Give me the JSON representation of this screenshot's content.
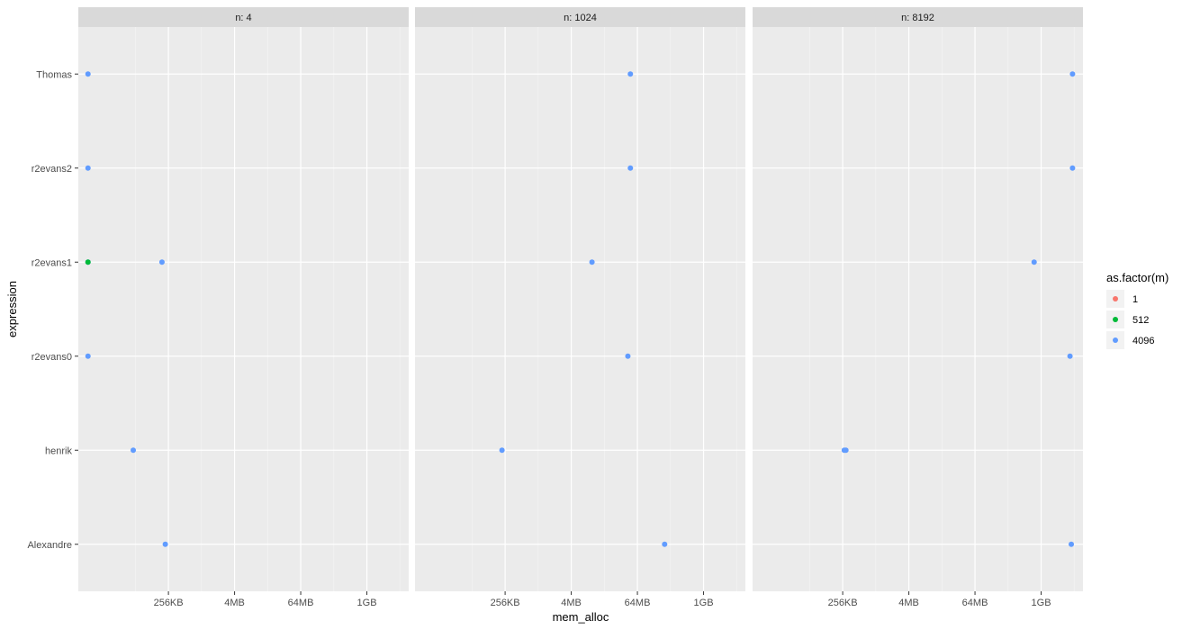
{
  "chart_data": {
    "type": "scatter",
    "xlabel": "mem_alloc",
    "ylabel": "expression",
    "x_scale": "log2",
    "x_unit": "bytes",
    "x_ticks": [
      {
        "value": 262144,
        "label": "256KB"
      },
      {
        "value": 4194304,
        "label": "4MB"
      },
      {
        "value": 67108864,
        "label": "64MB"
      },
      {
        "value": 1073741824,
        "label": "1GB"
      }
    ],
    "xlim": [
      6000,
      6200000000
    ],
    "categories": [
      "Alexandre",
      "henrik",
      "r2evans0",
      "r2evans1",
      "r2evans2",
      "Thomas"
    ],
    "legend": {
      "title": "as.factor(m)",
      "position": "right",
      "items": [
        {
          "label": "1",
          "color": "#F8766D"
        },
        {
          "label": "512",
          "color": "#00BA38"
        },
        {
          "label": "4096",
          "color": "#619CFF"
        }
      ]
    },
    "panels": [
      {
        "strip": "n: 4",
        "points": [
          {
            "category": "Thomas",
            "x": 9000,
            "group": "4096"
          },
          {
            "category": "r2evans2",
            "x": 9000,
            "group": "4096"
          },
          {
            "category": "r2evans1",
            "x": 9000,
            "group": "4096"
          },
          {
            "category": "r2evans1",
            "x": 9000,
            "group": "512"
          },
          {
            "category": "r2evans1",
            "x": 200000,
            "group": "4096"
          },
          {
            "category": "r2evans0",
            "x": 9000,
            "group": "4096"
          },
          {
            "category": "henrik",
            "x": 60000,
            "group": "4096"
          },
          {
            "category": "Alexandre",
            "x": 230000,
            "group": "4096"
          }
        ]
      },
      {
        "strip": "n: 1024",
        "points": [
          {
            "category": "Thomas",
            "x": 50000000,
            "group": "4096"
          },
          {
            "category": "r2evans2",
            "x": 50000000,
            "group": "4096"
          },
          {
            "category": "r2evans1",
            "x": 10000000,
            "group": "4096"
          },
          {
            "category": "r2evans0",
            "x": 45000000,
            "group": "4096"
          },
          {
            "category": "henrik",
            "x": 230000,
            "group": "4096"
          },
          {
            "category": "Alexandre",
            "x": 210000000,
            "group": "4096"
          }
        ]
      },
      {
        "strip": "n: 8192",
        "points": [
          {
            "category": "Thomas",
            "x": 4000000000,
            "group": "4096"
          },
          {
            "category": "r2evans2",
            "x": 4000000000,
            "group": "4096"
          },
          {
            "category": "r2evans1",
            "x": 800000000,
            "group": "4096"
          },
          {
            "category": "r2evans0",
            "x": 3600000000,
            "group": "4096"
          },
          {
            "category": "henrik",
            "x": 280000,
            "group": "4096"
          },
          {
            "category": "henrik",
            "x": 300000,
            "group": "4096"
          },
          {
            "category": "Alexandre",
            "x": 3800000000,
            "group": "4096"
          }
        ]
      }
    ]
  }
}
